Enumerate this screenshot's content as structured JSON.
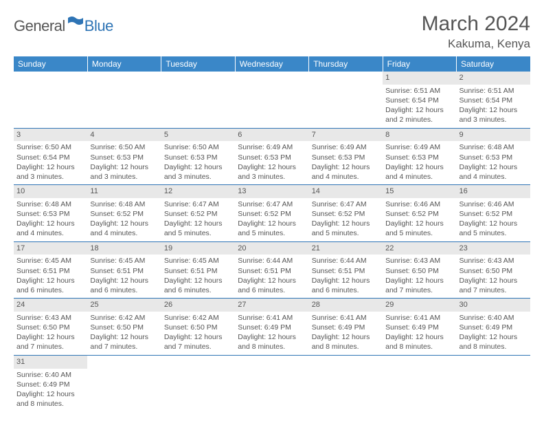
{
  "logo": {
    "main": "General",
    "accent": "Blue"
  },
  "title": "March 2024",
  "location": "Kakuma, Kenya",
  "colors": {
    "header_bg": "#3a87c8",
    "header_text": "#ffffff",
    "accent": "#2e74b5",
    "text": "#555555",
    "daynum_bg": "#e8e8e8",
    "grid_line": "#2e74b5"
  },
  "weekdays": [
    "Sunday",
    "Monday",
    "Tuesday",
    "Wednesday",
    "Thursday",
    "Friday",
    "Saturday"
  ],
  "weeks": [
    [
      null,
      null,
      null,
      null,
      null,
      {
        "n": "1",
        "r": "6:51 AM",
        "s": "6:54 PM",
        "d": "12 hours and 2 minutes."
      },
      {
        "n": "2",
        "r": "6:51 AM",
        "s": "6:54 PM",
        "d": "12 hours and 3 minutes."
      }
    ],
    [
      {
        "n": "3",
        "r": "6:50 AM",
        "s": "6:54 PM",
        "d": "12 hours and 3 minutes."
      },
      {
        "n": "4",
        "r": "6:50 AM",
        "s": "6:53 PM",
        "d": "12 hours and 3 minutes."
      },
      {
        "n": "5",
        "r": "6:50 AM",
        "s": "6:53 PM",
        "d": "12 hours and 3 minutes."
      },
      {
        "n": "6",
        "r": "6:49 AM",
        "s": "6:53 PM",
        "d": "12 hours and 3 minutes."
      },
      {
        "n": "7",
        "r": "6:49 AM",
        "s": "6:53 PM",
        "d": "12 hours and 4 minutes."
      },
      {
        "n": "8",
        "r": "6:49 AM",
        "s": "6:53 PM",
        "d": "12 hours and 4 minutes."
      },
      {
        "n": "9",
        "r": "6:48 AM",
        "s": "6:53 PM",
        "d": "12 hours and 4 minutes."
      }
    ],
    [
      {
        "n": "10",
        "r": "6:48 AM",
        "s": "6:53 PM",
        "d": "12 hours and 4 minutes."
      },
      {
        "n": "11",
        "r": "6:48 AM",
        "s": "6:52 PM",
        "d": "12 hours and 4 minutes."
      },
      {
        "n": "12",
        "r": "6:47 AM",
        "s": "6:52 PM",
        "d": "12 hours and 5 minutes."
      },
      {
        "n": "13",
        "r": "6:47 AM",
        "s": "6:52 PM",
        "d": "12 hours and 5 minutes."
      },
      {
        "n": "14",
        "r": "6:47 AM",
        "s": "6:52 PM",
        "d": "12 hours and 5 minutes."
      },
      {
        "n": "15",
        "r": "6:46 AM",
        "s": "6:52 PM",
        "d": "12 hours and 5 minutes."
      },
      {
        "n": "16",
        "r": "6:46 AM",
        "s": "6:52 PM",
        "d": "12 hours and 5 minutes."
      }
    ],
    [
      {
        "n": "17",
        "r": "6:45 AM",
        "s": "6:51 PM",
        "d": "12 hours and 6 minutes."
      },
      {
        "n": "18",
        "r": "6:45 AM",
        "s": "6:51 PM",
        "d": "12 hours and 6 minutes."
      },
      {
        "n": "19",
        "r": "6:45 AM",
        "s": "6:51 PM",
        "d": "12 hours and 6 minutes."
      },
      {
        "n": "20",
        "r": "6:44 AM",
        "s": "6:51 PM",
        "d": "12 hours and 6 minutes."
      },
      {
        "n": "21",
        "r": "6:44 AM",
        "s": "6:51 PM",
        "d": "12 hours and 6 minutes."
      },
      {
        "n": "22",
        "r": "6:43 AM",
        "s": "6:50 PM",
        "d": "12 hours and 7 minutes."
      },
      {
        "n": "23",
        "r": "6:43 AM",
        "s": "6:50 PM",
        "d": "12 hours and 7 minutes."
      }
    ],
    [
      {
        "n": "24",
        "r": "6:43 AM",
        "s": "6:50 PM",
        "d": "12 hours and 7 minutes."
      },
      {
        "n": "25",
        "r": "6:42 AM",
        "s": "6:50 PM",
        "d": "12 hours and 7 minutes."
      },
      {
        "n": "26",
        "r": "6:42 AM",
        "s": "6:50 PM",
        "d": "12 hours and 7 minutes."
      },
      {
        "n": "27",
        "r": "6:41 AM",
        "s": "6:49 PM",
        "d": "12 hours and 8 minutes."
      },
      {
        "n": "28",
        "r": "6:41 AM",
        "s": "6:49 PM",
        "d": "12 hours and 8 minutes."
      },
      {
        "n": "29",
        "r": "6:41 AM",
        "s": "6:49 PM",
        "d": "12 hours and 8 minutes."
      },
      {
        "n": "30",
        "r": "6:40 AM",
        "s": "6:49 PM",
        "d": "12 hours and 8 minutes."
      }
    ],
    [
      {
        "n": "31",
        "r": "6:40 AM",
        "s": "6:49 PM",
        "d": "12 hours and 8 minutes."
      },
      null,
      null,
      null,
      null,
      null,
      null
    ]
  ],
  "labels": {
    "sunrise": "Sunrise:",
    "sunset": "Sunset:",
    "daylight": "Daylight:"
  }
}
